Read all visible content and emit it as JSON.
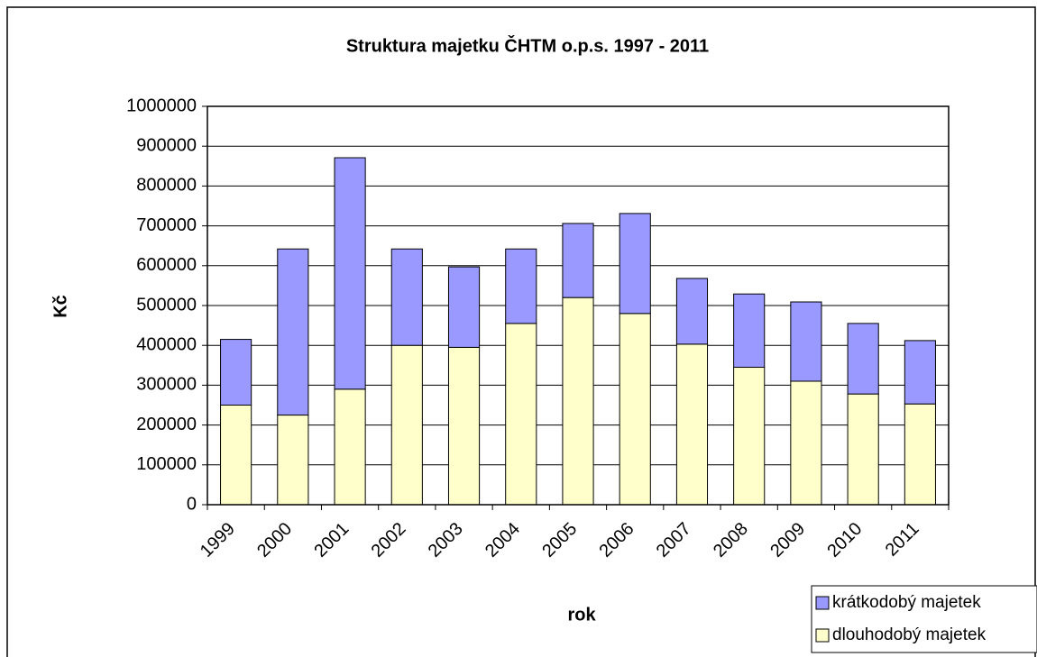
{
  "chart_data": {
    "type": "stacked_bar",
    "title": "Struktura majetku ČHTM o.p.s. 1997 - 2011",
    "x_label": "rok",
    "y_label": "Kč",
    "categories": [
      "1999",
      "2000",
      "2001",
      "2002",
      "2003",
      "2004",
      "2005",
      "2006",
      "2007",
      "2008",
      "2009",
      "2010",
      "2011"
    ],
    "series": [
      {
        "name": "dlouhodobý majetek",
        "color": "#ffffcc",
        "values": [
          250000,
          225000,
          290000,
          400000,
          395000,
          455000,
          520000,
          480000,
          403000,
          345000,
          310000,
          278000,
          253000
        ]
      },
      {
        "name": "krátkodobý majetek",
        "color": "#9999ff",
        "values": [
          165000,
          417000,
          581000,
          242000,
          202000,
          187000,
          186000,
          251000,
          165000,
          184000,
          199000,
          177000,
          159000
        ]
      }
    ],
    "ylim": [
      0,
      1000000
    ],
    "yticks": [
      0,
      100000,
      200000,
      300000,
      400000,
      500000,
      600000,
      700000,
      800000,
      900000,
      1000000
    ],
    "grid": true,
    "legend": "bottom-right"
  }
}
